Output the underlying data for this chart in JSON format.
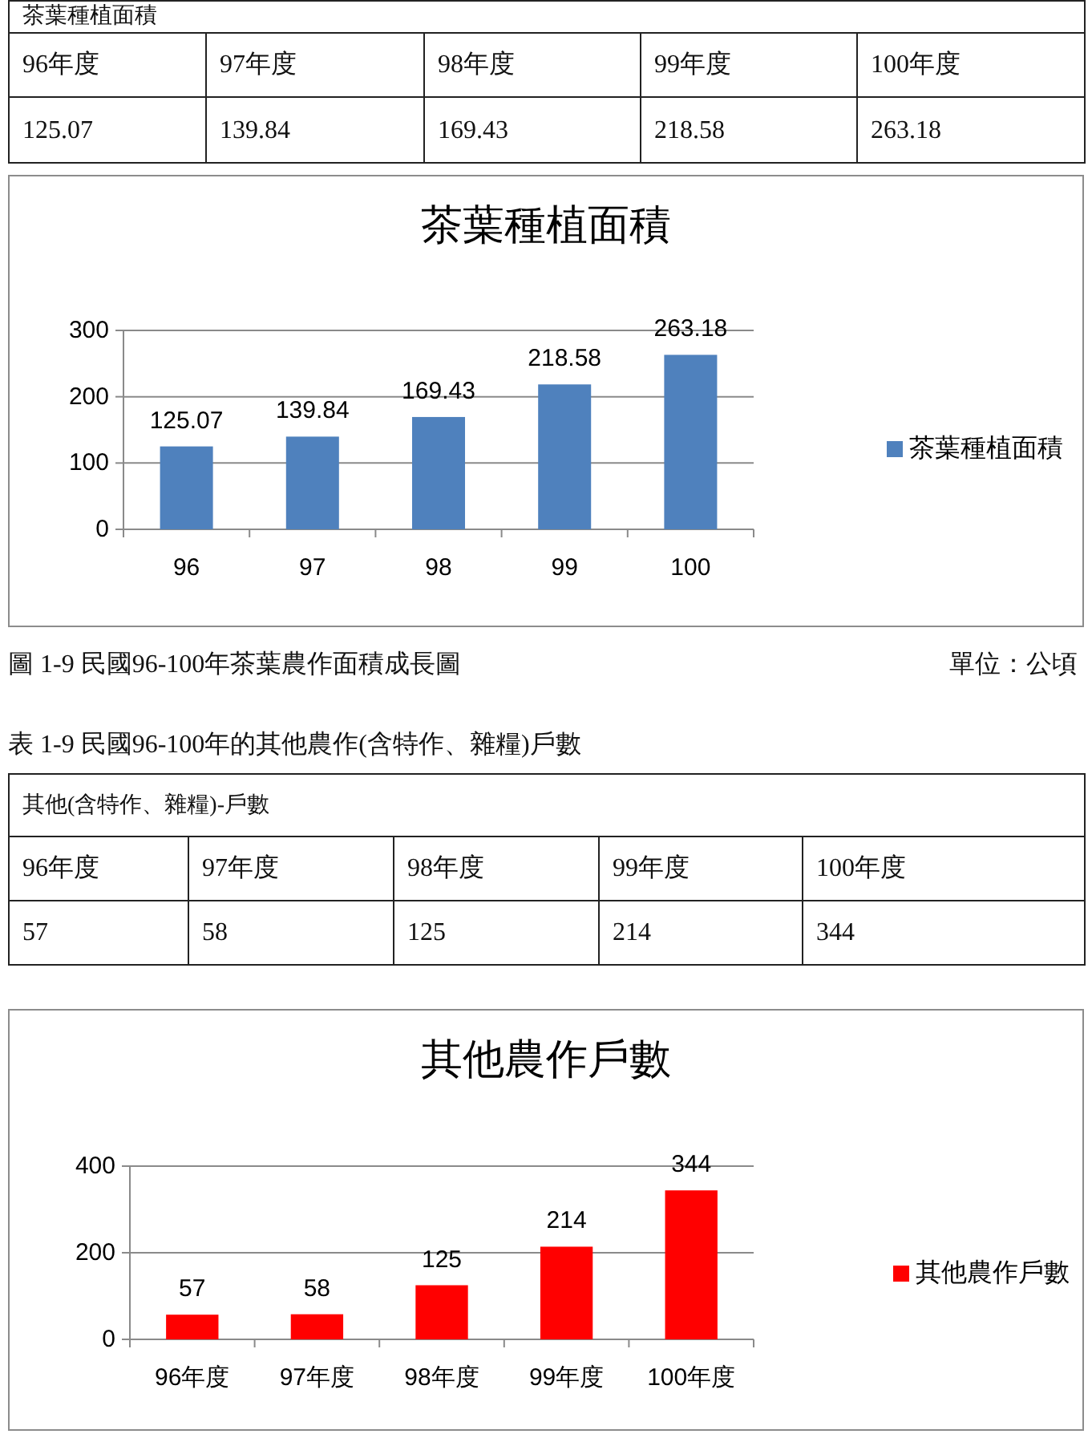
{
  "chart_data": [
    {
      "type": "bar",
      "title": "茶葉種植面積",
      "categories": [
        "96",
        "97",
        "98",
        "99",
        "100"
      ],
      "series": [
        {
          "name": "茶葉種植面積",
          "color": "#4f81bd",
          "values": [
            125.07,
            139.84,
            169.43,
            218.58,
            263.18
          ]
        }
      ],
      "ylim": [
        0,
        300
      ],
      "yticks": [
        0,
        100,
        200,
        300
      ],
      "grid": "y",
      "legend": "right",
      "data_labels": true,
      "annotations": [
        "茶葉種植面積",
        "96年度",
        "97年度",
        "98年度",
        "99年度",
        "100年度",
        "125.07",
        "139.84",
        "169.43",
        "218.58",
        "263.18",
        "圖 1-9 民國96-100年茶葉農作面積成長圖",
        "單位：公頃"
      ]
    },
    {
      "type": "bar",
      "title": "其他農作戶數",
      "categories": [
        "96年度",
        "97年度",
        "98年度",
        "99年度",
        "100年度"
      ],
      "series": [
        {
          "name": "其他農作戶數",
          "color": "#ff0000",
          "values": [
            57,
            58,
            125,
            214,
            344
          ]
        }
      ],
      "ylim": [
        0,
        400
      ],
      "yticks": [
        0,
        200,
        400
      ],
      "grid": "y",
      "legend": "right",
      "data_labels": true,
      "annotations": [
        "表 1-9 民國96-100年的其他農作(含特作、雜糧)戶數",
        "其他(含特作、雜糧)-戶數",
        "96年度",
        "97年度",
        "98年度",
        "99年度",
        "100年度",
        "57",
        "58",
        "125",
        "214",
        "344"
      ]
    }
  ]
}
